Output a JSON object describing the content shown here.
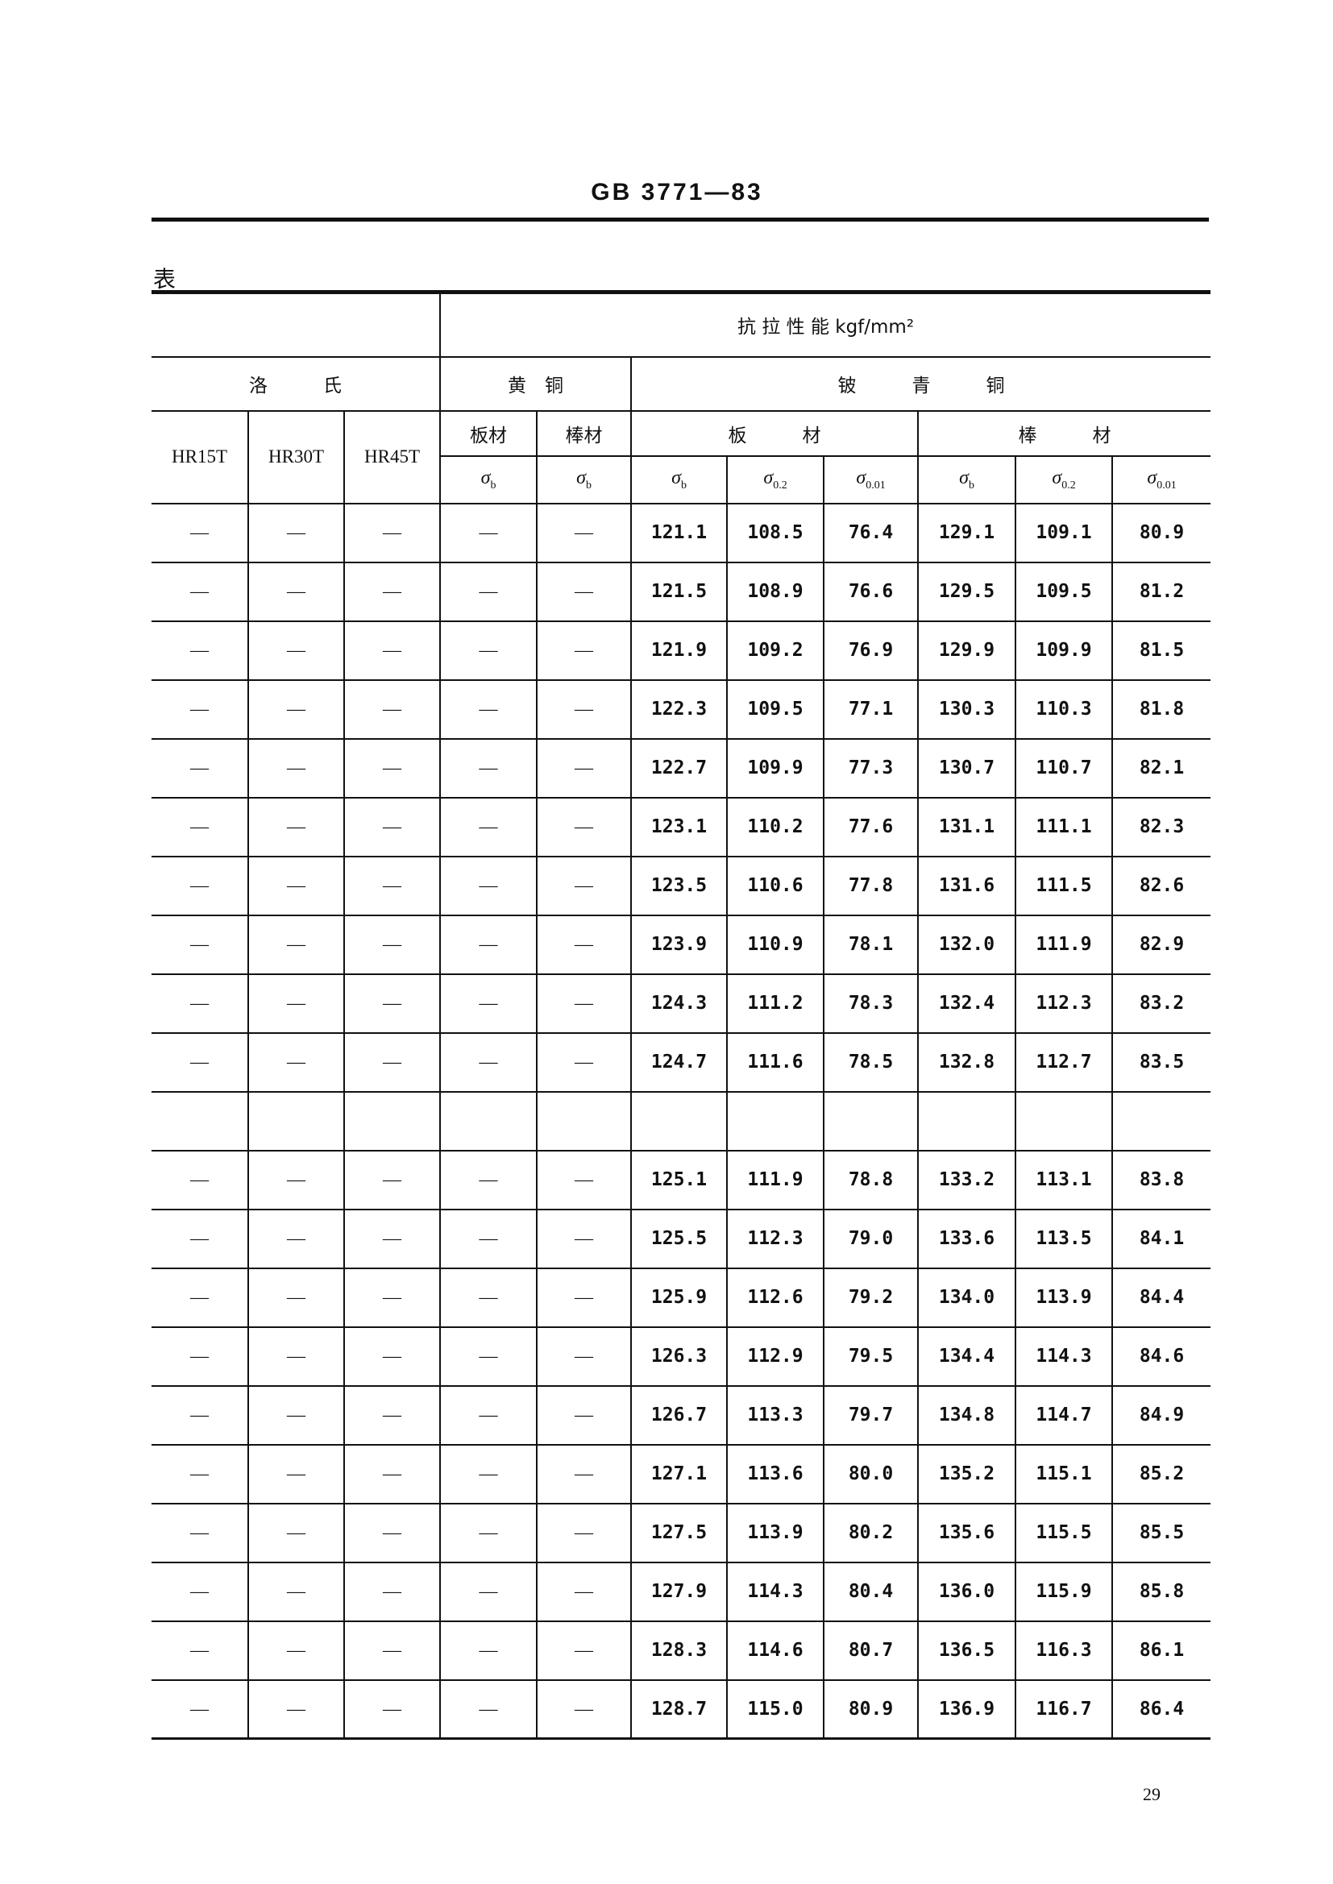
{
  "header": {
    "doc_code": "GB 3771—83"
  },
  "table_label": "表",
  "table": {
    "tensile_header": "抗 拉 性 能 kgf/mm²",
    "rockwell_header": "洛　　　氏",
    "brass_header": "黄　铜",
    "beryllium_header": "铍　　　青　　　铜",
    "plate_short": "板材",
    "bar_short": "棒材",
    "plate_wide": "板　　　材",
    "bar_wide": "棒　　　材",
    "hardness_cols": [
      "HR15T",
      "HR30T",
      "HR45T"
    ],
    "sigma_cols": [
      {
        "symbol": "σ",
        "sub": "b"
      },
      {
        "symbol": "σ",
        "sub": "b"
      },
      {
        "symbol": "σ",
        "sub": "b"
      },
      {
        "symbol": "σ",
        "sub": "0.2"
      },
      {
        "symbol": "σ",
        "sub": "0.01"
      },
      {
        "symbol": "σ",
        "sub": "b"
      },
      {
        "symbol": "σ",
        "sub": "0.2"
      },
      {
        "symbol": "σ",
        "sub": "0.01"
      }
    ],
    "rows": [
      [
        "—",
        "—",
        "—",
        "—",
        "—",
        "121.1",
        "108.5",
        "76.4",
        "129.1",
        "109.1",
        "80.9"
      ],
      [
        "—",
        "—",
        "—",
        "—",
        "—",
        "121.5",
        "108.9",
        "76.6",
        "129.5",
        "109.5",
        "81.2"
      ],
      [
        "—",
        "—",
        "—",
        "—",
        "—",
        "121.9",
        "109.2",
        "76.9",
        "129.9",
        "109.9",
        "81.5"
      ],
      [
        "—",
        "—",
        "—",
        "—",
        "—",
        "122.3",
        "109.5",
        "77.1",
        "130.3",
        "110.3",
        "81.8"
      ],
      [
        "—",
        "—",
        "—",
        "—",
        "—",
        "122.7",
        "109.9",
        "77.3",
        "130.7",
        "110.7",
        "82.1"
      ],
      [
        "—",
        "—",
        "—",
        "—",
        "—",
        "123.1",
        "110.2",
        "77.6",
        "131.1",
        "111.1",
        "82.3"
      ],
      [
        "—",
        "—",
        "—",
        "—",
        "—",
        "123.5",
        "110.6",
        "77.8",
        "131.6",
        "111.5",
        "82.6"
      ],
      [
        "—",
        "—",
        "—",
        "—",
        "—",
        "123.9",
        "110.9",
        "78.1",
        "132.0",
        "111.9",
        "82.9"
      ],
      [
        "—",
        "—",
        "—",
        "—",
        "—",
        "124.3",
        "111.2",
        "78.3",
        "132.4",
        "112.3",
        "83.2"
      ],
      [
        "—",
        "—",
        "—",
        "—",
        "—",
        "124.7",
        "111.6",
        "78.5",
        "132.8",
        "112.7",
        "83.5"
      ],
      [
        "",
        "",
        "",
        "",
        "",
        "",
        "",
        "",
        "",
        "",
        ""
      ],
      [
        "—",
        "—",
        "—",
        "—",
        "—",
        "125.1",
        "111.9",
        "78.8",
        "133.2",
        "113.1",
        "83.8"
      ],
      [
        "—",
        "—",
        "—",
        "—",
        "—",
        "125.5",
        "112.3",
        "79.0",
        "133.6",
        "113.5",
        "84.1"
      ],
      [
        "—",
        "—",
        "—",
        "—",
        "—",
        "125.9",
        "112.6",
        "79.2",
        "134.0",
        "113.9",
        "84.4"
      ],
      [
        "—",
        "—",
        "—",
        "—",
        "—",
        "126.3",
        "112.9",
        "79.5",
        "134.4",
        "114.3",
        "84.6"
      ],
      [
        "—",
        "—",
        "—",
        "—",
        "—",
        "126.7",
        "113.3",
        "79.7",
        "134.8",
        "114.7",
        "84.9"
      ],
      [
        "—",
        "—",
        "—",
        "—",
        "—",
        "127.1",
        "113.6",
        "80.0",
        "135.2",
        "115.1",
        "85.2"
      ],
      [
        "—",
        "—",
        "—",
        "—",
        "—",
        "127.5",
        "113.9",
        "80.2",
        "135.6",
        "115.5",
        "85.5"
      ],
      [
        "—",
        "—",
        "—",
        "—",
        "—",
        "127.9",
        "114.3",
        "80.4",
        "136.0",
        "115.9",
        "85.8"
      ],
      [
        "—",
        "—",
        "—",
        "—",
        "—",
        "128.3",
        "114.6",
        "80.7",
        "136.5",
        "116.3",
        "86.1"
      ],
      [
        "—",
        "—",
        "—",
        "—",
        "—",
        "128.7",
        "115.0",
        "80.9",
        "136.9",
        "116.7",
        "86.4"
      ]
    ]
  },
  "page_number": "29"
}
